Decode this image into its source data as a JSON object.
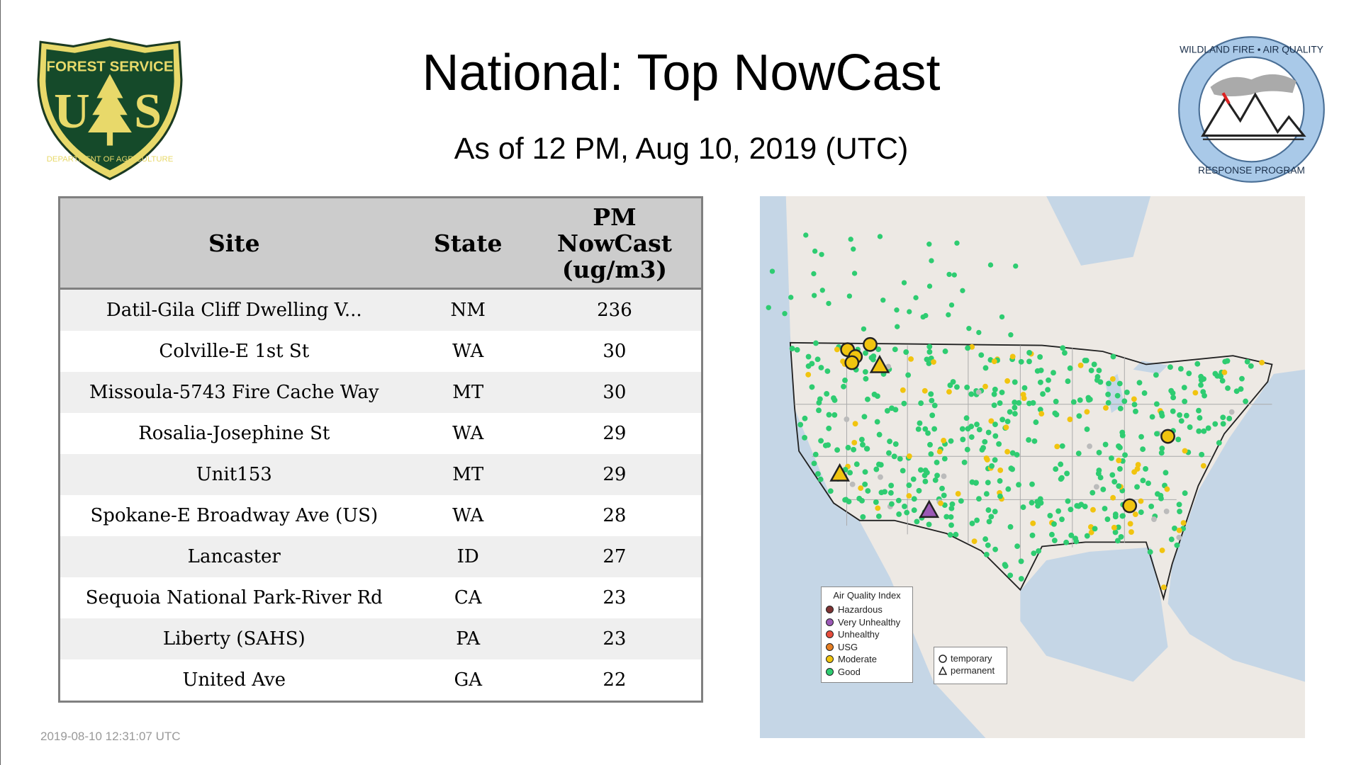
{
  "header": {
    "title": "National: Top NowCast",
    "subtitle": "As of 12 PM, Aug 10, 2019 (UTC)"
  },
  "logos": {
    "left": {
      "name": "forest-service-shield",
      "text_top": "FOREST SERVICE",
      "text_mid": "U S",
      "text_bottom": "DEPARTMENT OF AGRICULTURE"
    },
    "right": {
      "name": "wildland-fire-aq-response-program",
      "text_top": "WILDLAND FIRE • AIR QUALITY",
      "text_bottom": "RESPONSE PROGRAM"
    }
  },
  "table": {
    "columns": [
      "Site",
      "State",
      "PM NowCast (ug/m3)"
    ],
    "column_lines": {
      "pm": [
        "PM",
        "NowCast",
        "(ug/m3)"
      ]
    },
    "rows": [
      {
        "site": "Datil-Gila Cliff Dwelling V...",
        "state": "NM",
        "value": "236"
      },
      {
        "site": "Colville-E 1st St",
        "state": "WA",
        "value": "30"
      },
      {
        "site": "Missoula-5743 Fire Cache Way",
        "state": "MT",
        "value": "30"
      },
      {
        "site": "Rosalia-Josephine St",
        "state": "WA",
        "value": "29"
      },
      {
        "site": "Unit153",
        "state": "MT",
        "value": "29"
      },
      {
        "site": "Spokane-E Broadway Ave (US)",
        "state": "WA",
        "value": "28"
      },
      {
        "site": "Lancaster",
        "state": "ID",
        "value": "27"
      },
      {
        "site": "Sequoia National Park-River Rd",
        "state": "CA",
        "value": "23"
      },
      {
        "site": "Liberty (SAHS)",
        "state": "PA",
        "value": "23"
      },
      {
        "site": "United Ave",
        "state": "GA",
        "value": "22"
      }
    ]
  },
  "map": {
    "legend": {
      "title": "Air Quality Index",
      "items": [
        {
          "label": "Hazardous",
          "color": "#7e3333"
        },
        {
          "label": "Very Unhealthy",
          "color": "#9b59b6"
        },
        {
          "label": "Unhealthy",
          "color": "#e74c3c"
        },
        {
          "label": "USG",
          "color": "#e67e22"
        },
        {
          "label": "Moderate",
          "color": "#f1c40f"
        },
        {
          "label": "Good",
          "color": "#2ecc71"
        }
      ]
    },
    "marker_legend": {
      "items": [
        {
          "label": "temporary",
          "shape": "circle"
        },
        {
          "label": "permanent",
          "shape": "triangle"
        }
      ]
    },
    "colors": {
      "water": "#c5d6e6",
      "land": "#ede9e4",
      "no_data": "#bbbbbb"
    }
  },
  "footer": {
    "timestamp": "2019-08-10 12:31:07 UTC"
  }
}
